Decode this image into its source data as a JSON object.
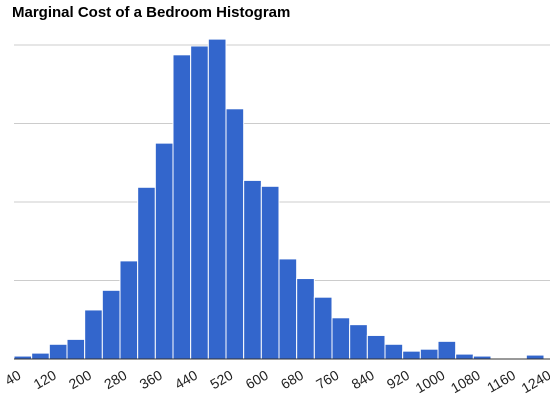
{
  "chart_data": {
    "type": "bar",
    "title": "Marginal Cost of a Bedroom Histogram",
    "xlabel": "",
    "ylabel": "",
    "x_tick_labels": [
      "40",
      "120",
      "200",
      "280",
      "360",
      "440",
      "520",
      "600",
      "680",
      "760",
      "840",
      "920",
      "1000",
      "1080",
      "1160",
      "1240"
    ],
    "bin_width": 40,
    "bin_start": 40,
    "values": [
      3,
      6,
      15,
      20,
      50,
      70,
      100,
      175,
      220,
      310,
      319,
      326,
      255,
      182,
      176,
      102,
      82,
      63,
      42,
      35,
      24,
      15,
      8,
      10,
      18,
      5,
      3,
      1,
      1,
      4
    ],
    "ylim": [
      0,
      320
    ],
    "grid": true,
    "bar_color": "#3366cc",
    "gridline_color": "#cccccc",
    "baseline_color": "#333333"
  }
}
